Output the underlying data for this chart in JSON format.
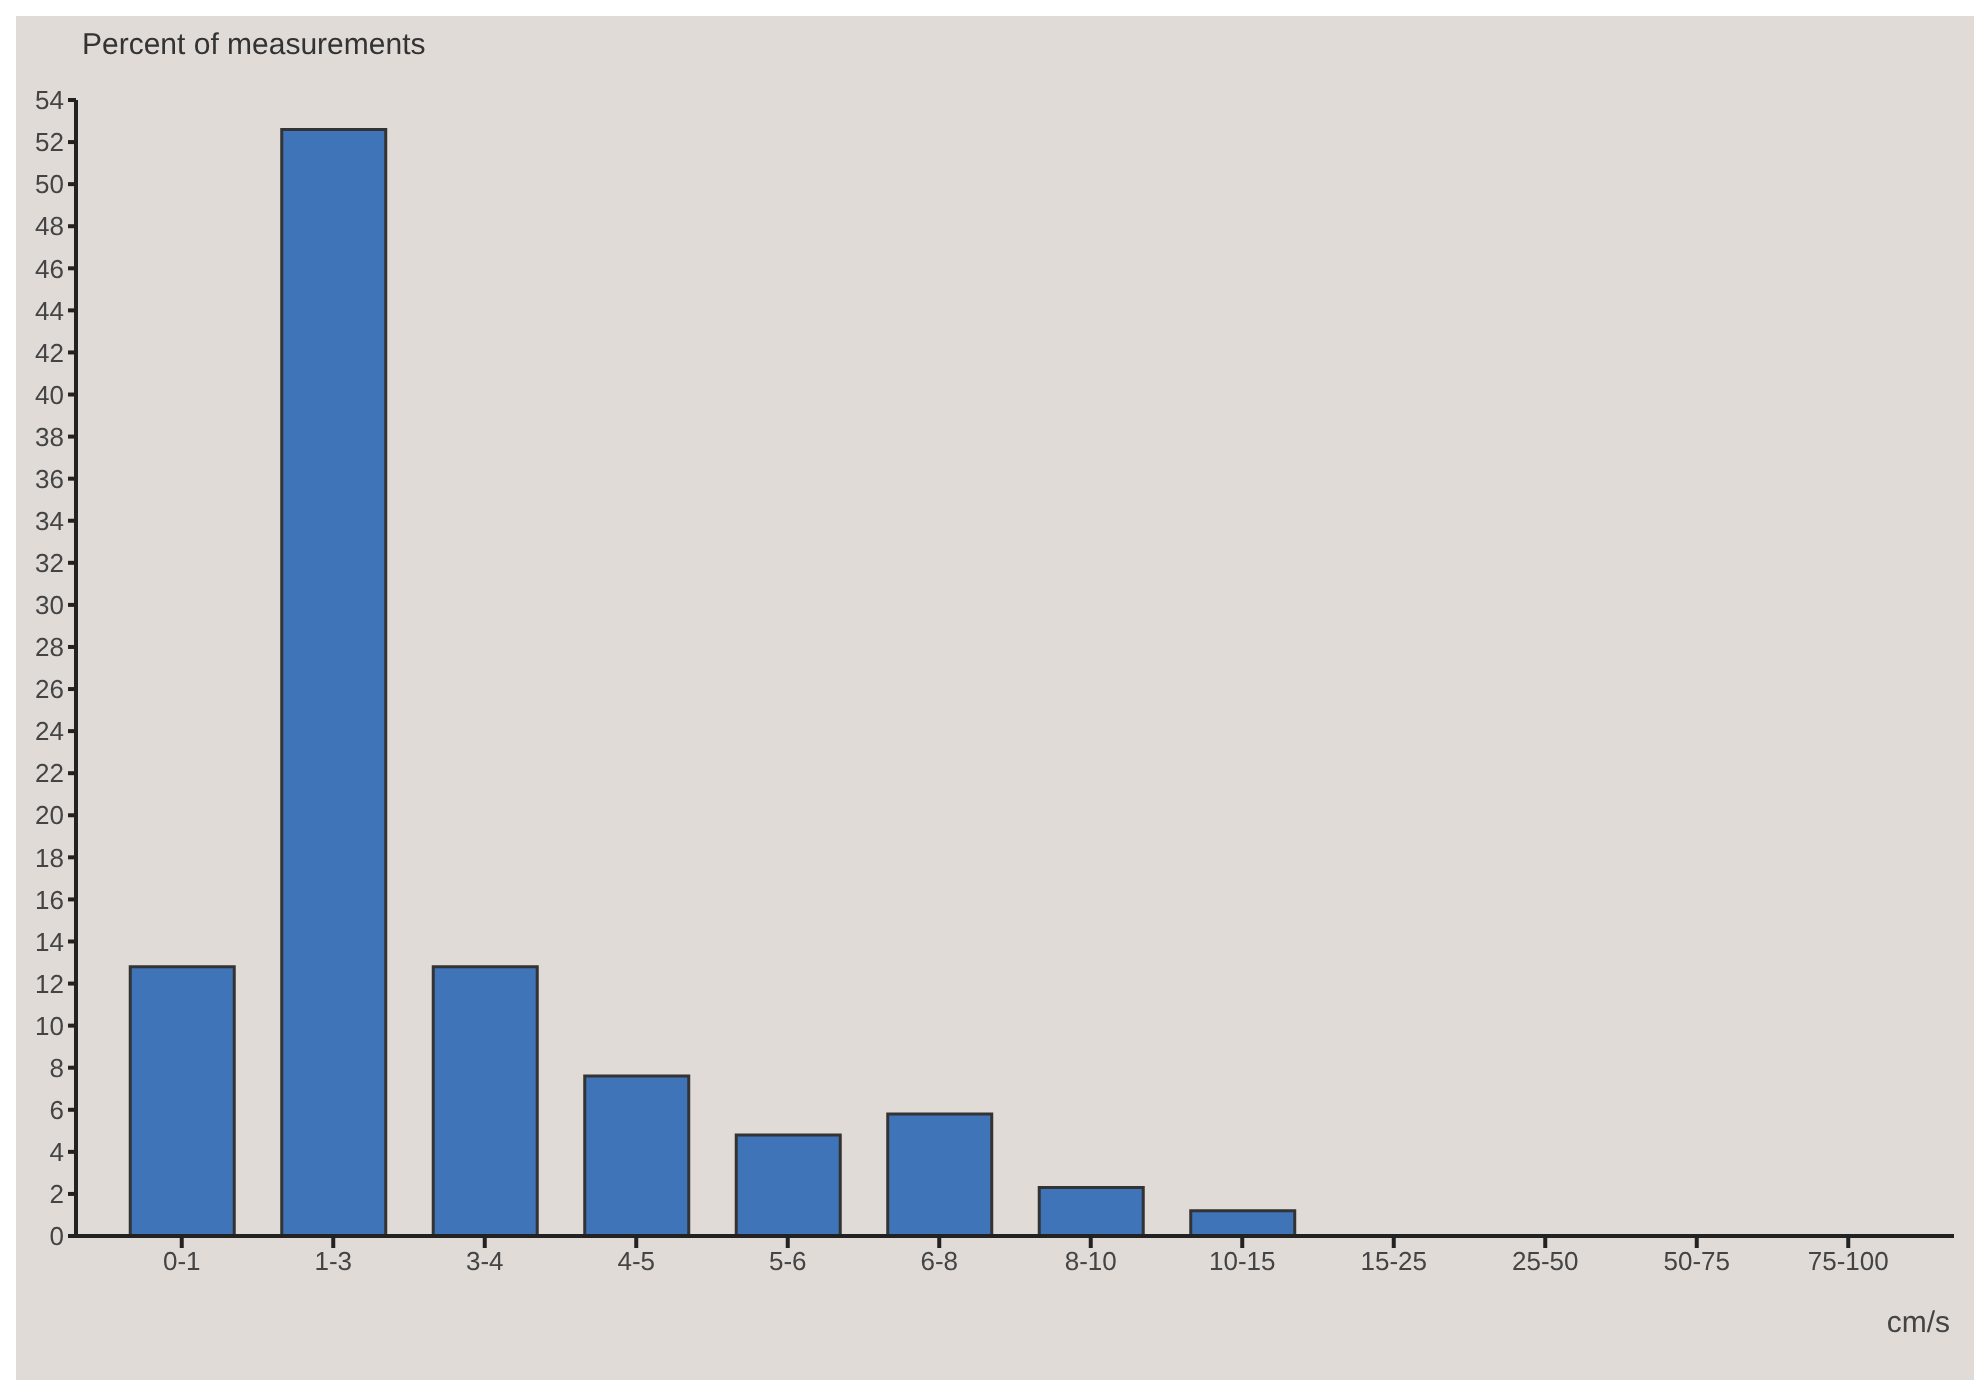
{
  "chart_data": {
    "type": "bar",
    "ylabel": "Percent of measurements",
    "xlabel": "cm/s",
    "categories": [
      "0-1",
      "1-3",
      "3-4",
      "4-5",
      "5-6",
      "6-8",
      "8-10",
      "10-15",
      "15-25",
      "25-50",
      "50-75",
      "75-100"
    ],
    "values": [
      12.8,
      52.6,
      12.8,
      7.6,
      4.8,
      5.8,
      2.3,
      1.2,
      0,
      0,
      0,
      0
    ],
    "color": "#3f74b8",
    "ylim": [
      0,
      54
    ],
    "yticks": [
      0,
      2,
      4,
      6,
      8,
      10,
      12,
      14,
      16,
      18,
      20,
      22,
      24,
      26,
      28,
      30,
      32,
      34,
      36,
      38,
      40,
      42,
      44,
      46,
      48,
      50,
      52,
      54
    ],
    "grid": false,
    "legend": false
  }
}
